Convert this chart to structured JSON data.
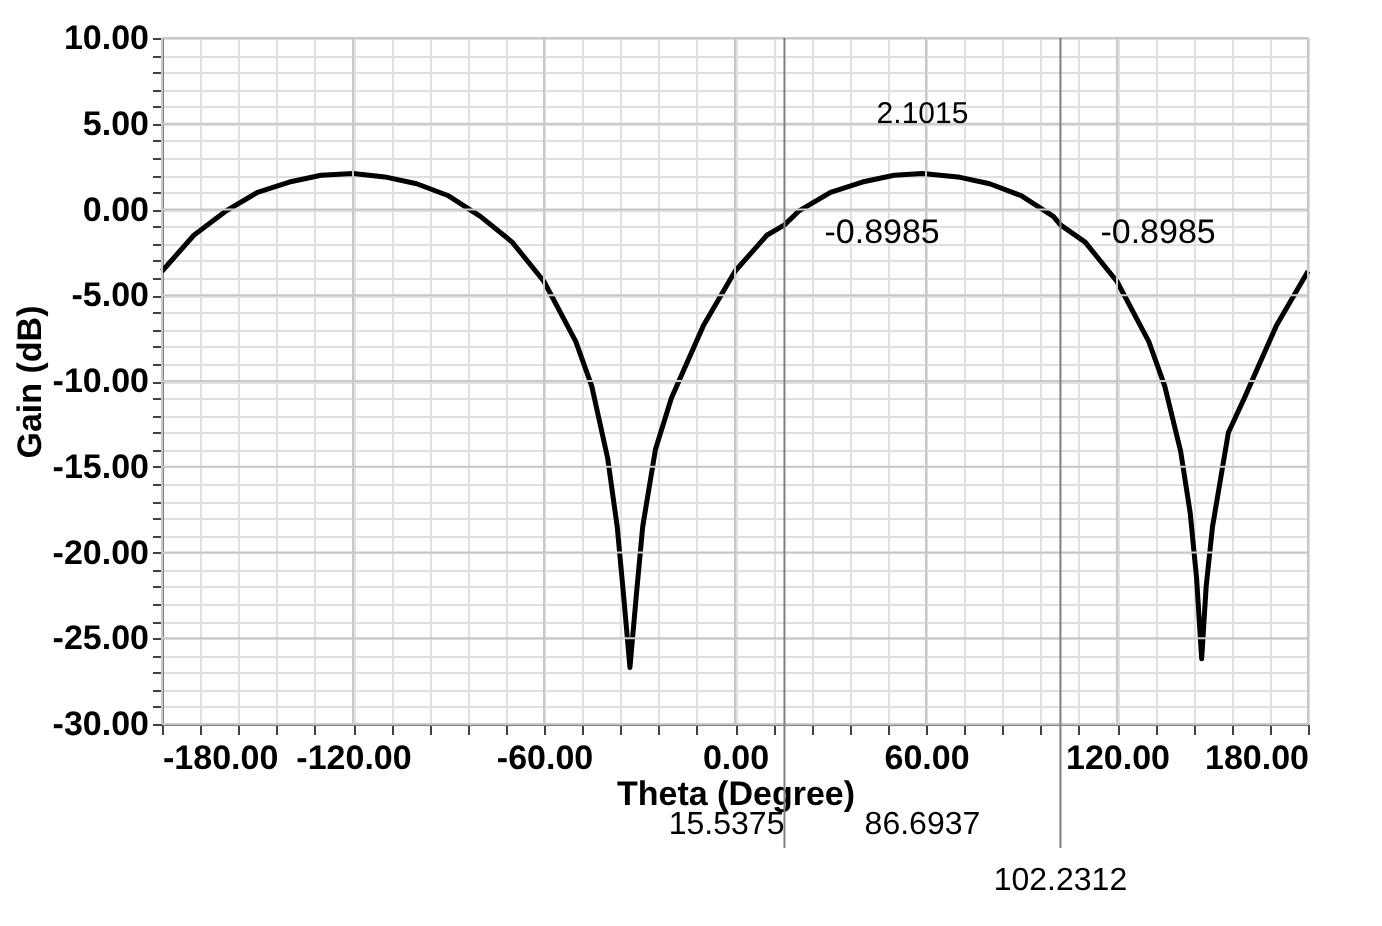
{
  "chart_data": {
    "type": "line",
    "xlabel": "Theta (Degree)",
    "ylabel": "Gain (dB)",
    "x": [
      -180,
      -170,
      -160,
      -150,
      -140,
      -130,
      -120,
      -110,
      -100,
      -90,
      -80,
      -70,
      -60,
      -50,
      -45,
      -40,
      -37,
      -35,
      -33,
      -31,
      -29,
      -25,
      -20,
      -10,
      0,
      10,
      15.5375,
      20,
      30,
      40,
      50,
      58.9,
      70,
      80,
      90,
      100,
      102.2312,
      110,
      120,
      130,
      135,
      140,
      143,
      145,
      146.6,
      148,
      150,
      155,
      160,
      170,
      180
    ],
    "series": [
      {
        "color": "#000000",
        "values": [
          -3.6,
          -1.5,
          -0.1,
          1.0,
          1.6,
          2.0,
          2.1,
          1.9,
          1.5,
          0.8,
          -0.4,
          -1.9,
          -4.2,
          -7.7,
          -10.3,
          -14.5,
          -18.5,
          -22.5,
          -26.7,
          -22.5,
          -18.5,
          -14.0,
          -11.0,
          -6.8,
          -3.6,
          -1.5,
          -0.8985,
          -0.1,
          1.0,
          1.6,
          2.0,
          2.1015,
          1.9,
          1.5,
          0.8,
          -0.4,
          -0.8985,
          -1.9,
          -4.2,
          -7.7,
          -10.3,
          -14.1,
          -17.7,
          -21.5,
          -26.2,
          -22.0,
          -18.5,
          -13.0,
          -11.0,
          -6.8,
          -3.6
        ]
      }
    ],
    "xlim": [
      -180,
      180
    ],
    "ylim": [
      -30,
      10
    ],
    "xticks": [
      {
        "value": -180,
        "label": "-180.00"
      },
      {
        "value": -168,
        "label": null
      },
      {
        "value": -156,
        "label": null
      },
      {
        "value": -144,
        "label": null
      },
      {
        "value": -132,
        "label": null
      },
      {
        "value": -120,
        "label": "-120.00"
      },
      {
        "value": -108,
        "label": null
      },
      {
        "value": -96,
        "label": null
      },
      {
        "value": -84,
        "label": null
      },
      {
        "value": -72,
        "label": null
      },
      {
        "value": -60,
        "label": "-60.00"
      },
      {
        "value": -48,
        "label": null
      },
      {
        "value": -36,
        "label": null
      },
      {
        "value": -24,
        "label": null
      },
      {
        "value": -12,
        "label": null
      },
      {
        "value": 0,
        "label": "0.00"
      },
      {
        "value": 12,
        "label": null
      },
      {
        "value": 24,
        "label": null
      },
      {
        "value": 36,
        "label": null
      },
      {
        "value": 48,
        "label": null
      },
      {
        "value": 60,
        "label": "60.00"
      },
      {
        "value": 72,
        "label": null
      },
      {
        "value": 84,
        "label": null
      },
      {
        "value": 96,
        "label": null
      },
      {
        "value": 108,
        "label": null
      },
      {
        "value": 120,
        "label": "120.00"
      },
      {
        "value": 132,
        "label": null
      },
      {
        "value": 144,
        "label": null
      },
      {
        "value": 156,
        "label": null
      },
      {
        "value": 168,
        "label": null
      },
      {
        "value": 180,
        "label": "180.00"
      }
    ],
    "yticks": [
      {
        "value": -30,
        "label": "-30.00"
      },
      {
        "value": -29,
        "label": null
      },
      {
        "value": -28,
        "label": null
      },
      {
        "value": -27,
        "label": null
      },
      {
        "value": -26,
        "label": null
      },
      {
        "value": -25,
        "label": "-25.00"
      },
      {
        "value": -24,
        "label": null
      },
      {
        "value": -23,
        "label": null
      },
      {
        "value": -22,
        "label": null
      },
      {
        "value": -21,
        "label": null
      },
      {
        "value": -20,
        "label": "-20.00"
      },
      {
        "value": -19,
        "label": null
      },
      {
        "value": -18,
        "label": null
      },
      {
        "value": -17,
        "label": null
      },
      {
        "value": -16,
        "label": null
      },
      {
        "value": -15,
        "label": "-15.00"
      },
      {
        "value": -14,
        "label": null
      },
      {
        "value": -13,
        "label": null
      },
      {
        "value": -12,
        "label": null
      },
      {
        "value": -11,
        "label": null
      },
      {
        "value": -10,
        "label": "-10.00"
      },
      {
        "value": -9,
        "label": null
      },
      {
        "value": -8,
        "label": null
      },
      {
        "value": -7,
        "label": null
      },
      {
        "value": -6,
        "label": null
      },
      {
        "value": -5,
        "label": "-5.00"
      },
      {
        "value": -4,
        "label": null
      },
      {
        "value": -3,
        "label": null
      },
      {
        "value": -2,
        "label": null
      },
      {
        "value": -1,
        "label": null
      },
      {
        "value": 0,
        "label": "0.00"
      },
      {
        "value": 1,
        "label": null
      },
      {
        "value": 2,
        "label": null
      },
      {
        "value": 3,
        "label": null
      },
      {
        "value": 4,
        "label": null
      },
      {
        "value": 5,
        "label": "5.00"
      },
      {
        "value": 6,
        "label": null
      },
      {
        "value": 7,
        "label": null
      },
      {
        "value": 8,
        "label": null
      },
      {
        "value": 9,
        "label": null
      },
      {
        "value": 10,
        "label": "10.00"
      }
    ],
    "grid": true,
    "marker": "none",
    "line_style": "solid",
    "ref_lines": [
      {
        "axis": "x",
        "value": 15.5375,
        "label": "15.5375",
        "color": "#808080"
      },
      {
        "axis": "x",
        "value": 102.2312,
        "label": "102.2312",
        "color": "#808080"
      }
    ],
    "annotations": [
      {
        "text": "2.1015",
        "x": 58.9,
        "y": 2.1015
      },
      {
        "text": "-0.8985",
        "x": 15.5375,
        "y": -0.8985
      },
      {
        "text": "-0.8985",
        "x": 102.2312,
        "y": -0.8985
      },
      "86.6937"
    ]
  }
}
